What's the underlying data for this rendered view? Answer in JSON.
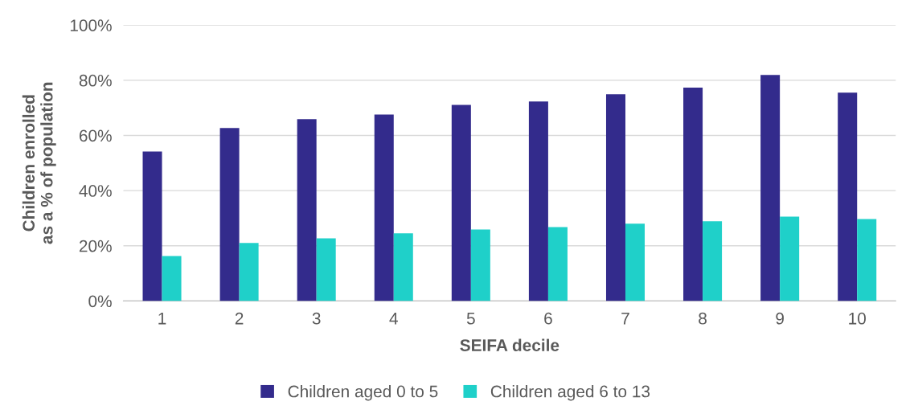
{
  "chart_data": {
    "type": "bar",
    "xlabel": "SEIFA decile",
    "ylabel": "Children enrolled\nas a % of population",
    "categories": [
      "1",
      "2",
      "3",
      "4",
      "5",
      "6",
      "7",
      "8",
      "9",
      "10"
    ],
    "series": [
      {
        "name": "Children aged 0 to 5",
        "color": "#332b8c",
        "values": [
          54.2,
          62.7,
          65.9,
          67.6,
          71.1,
          72.3,
          74.9,
          77.3,
          81.9,
          75.5
        ]
      },
      {
        "name": "Children aged 6 to 13",
        "color": "#1fd0c9",
        "values": [
          16.3,
          21.0,
          22.7,
          24.5,
          25.9,
          26.8,
          28.0,
          28.9,
          30.6,
          29.7
        ]
      }
    ],
    "ylim": [
      0,
      100
    ],
    "yticks": [
      {
        "value": 0,
        "label": "0%"
      },
      {
        "value": 20,
        "label": "20%"
      },
      {
        "value": 40,
        "label": "40%"
      },
      {
        "value": 60,
        "label": "60%"
      },
      {
        "value": 80,
        "label": "80%"
      },
      {
        "value": 100,
        "label": "100%"
      }
    ],
    "grid": "y",
    "legend": "bottom"
  }
}
